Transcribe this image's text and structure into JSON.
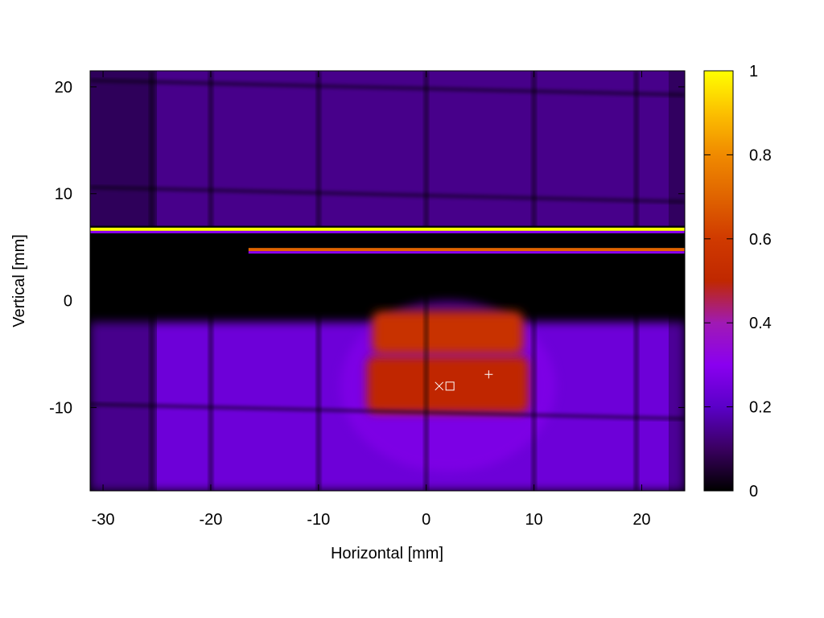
{
  "chart_data": {
    "type": "heatmap",
    "title": "",
    "xlabel": "Horizontal [mm]",
    "ylabel": "Vertical [mm]",
    "xlim": [
      -31.2,
      24
    ],
    "ylim": [
      -17.8,
      21.5
    ],
    "xticks": [
      -30,
      -20,
      -10,
      0,
      10,
      20
    ],
    "yticks": [
      -10,
      0,
      10,
      20
    ],
    "colorbar": {
      "range": [
        0,
        1
      ],
      "ticks": [
        0,
        0.2,
        0.4,
        0.6,
        0.8,
        1
      ],
      "tick_labels": [
        "0",
        "0.2",
        "0.4",
        "0.6",
        "0.8",
        "1"
      ],
      "stops": [
        {
          "value": 0.0,
          "color": "#000000"
        },
        {
          "value": 0.1,
          "color": "#3a0060"
        },
        {
          "value": 0.2,
          "color": "#5a00c8"
        },
        {
          "value": 0.3,
          "color": "#8a00f0"
        },
        {
          "value": 0.4,
          "color": "#a01ab4"
        },
        {
          "value": 0.5,
          "color": "#c02800"
        },
        {
          "value": 0.6,
          "color": "#d03a00"
        },
        {
          "value": 0.7,
          "color": "#e06400"
        },
        {
          "value": 0.8,
          "color": "#f08a00"
        },
        {
          "value": 0.9,
          "color": "#fcc000"
        },
        {
          "value": 1.0,
          "color": "#ffff00"
        }
      ]
    },
    "grid_lines": {
      "vertical_x": [
        -25.5,
        -20,
        -10,
        0,
        10,
        19.5
      ],
      "horizontal_y": [
        20,
        10,
        -10.3
      ]
    },
    "regions": [
      {
        "name": "upper-field",
        "x": [
          -31.2,
          24
        ],
        "y": [
          7,
          21.5
        ],
        "value": 0.14
      },
      {
        "name": "dark-gap",
        "x": [
          -31.2,
          24
        ],
        "y": [
          -2,
          6.4
        ],
        "value": 0.0
      },
      {
        "name": "lower-halo",
        "x": [
          -31.2,
          24
        ],
        "y": [
          -17.8,
          -2
        ],
        "value": 0.24
      },
      {
        "name": "core-lower",
        "x": [
          -5.5,
          9.5
        ],
        "y": [
          -10.5,
          -5.2
        ],
        "value": 0.5
      },
      {
        "name": "core-upper",
        "x": [
          -5,
          9
        ],
        "y": [
          -5,
          -1
        ],
        "value": 0.55
      }
    ],
    "stripes": [
      {
        "name": "top-stripe",
        "x": [
          -31.2,
          24
        ],
        "y": 6.6,
        "value": 1.0
      },
      {
        "name": "thin-stripe",
        "x": [
          -16.5,
          24
        ],
        "y": 4.7,
        "value": 0.7
      }
    ],
    "markers": [
      {
        "name": "x-marker",
        "symbol": "x",
        "x": 1.2,
        "y": -8.0
      },
      {
        "name": "square-marker",
        "symbol": "square",
        "x": 2.2,
        "y": -8.0
      },
      {
        "name": "plus-marker",
        "symbol": "+",
        "x": 5.8,
        "y": -6.9
      }
    ]
  }
}
